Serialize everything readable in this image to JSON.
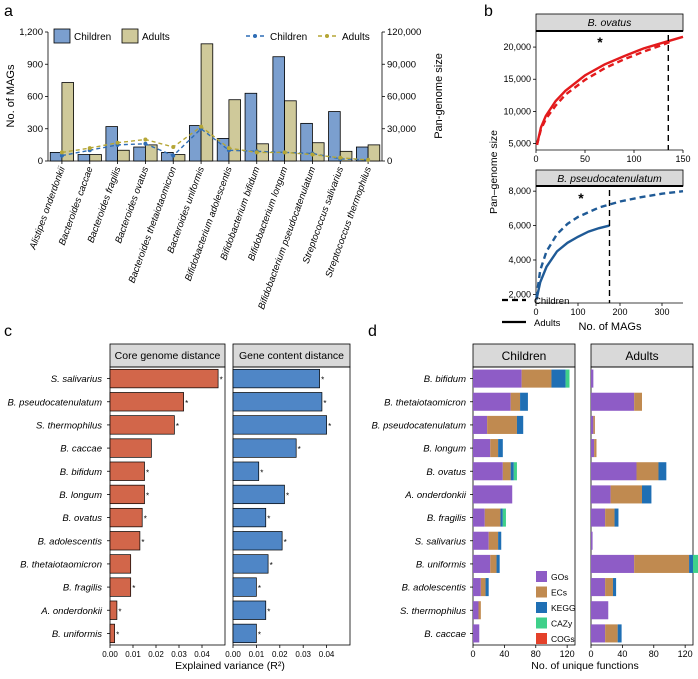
{
  "panels": [
    {
      "id": "a",
      "label": "a"
    },
    {
      "id": "b",
      "label": "b"
    },
    {
      "id": "c",
      "label": "c"
    },
    {
      "id": "d",
      "label": "d"
    }
  ],
  "colors": {
    "children_bar": "#7b9fcf",
    "adults_bar": "#cfc99a",
    "children_line": "#2f6db5",
    "adults_line": "#b5a636",
    "ovatus_line": "#e31a1c",
    "pseudo_line": "#1f5a96",
    "core_bar": "#d2664a",
    "gene_bar": "#4f86c6",
    "GOs": "#8e5cc6",
    "ECs": "#c08a50",
    "KEGG": "#1f6fb4",
    "CAZy": "#3fd08a",
    "COGs": "#e4412a",
    "strip": "#d9d9d9"
  },
  "chart_data": [
    {
      "panel": "a",
      "type": "bar",
      "categories": [
        "Alistipes onderdonkii",
        "Bacteroides caccae",
        "Bacteroides fragilis",
        "Bacteroides ovatus",
        "Bacteroides thetaiotaomicron",
        "Bacteroides uniformis",
        "Bifidobacterium adolescentis",
        "Bifidobacterium bifidum",
        "Bifidobacterium longum",
        "Bifidobacterium pseudocatenulatum",
        "Streptococcus salivarius",
        "Streptococcus thermophilus"
      ],
      "series": [
        {
          "name": "Children",
          "kind": "bar",
          "values": [
            80,
            60,
            320,
            130,
            80,
            330,
            210,
            630,
            970,
            350,
            460,
            130
          ]
        },
        {
          "name": "Adults",
          "kind": "bar",
          "values": [
            730,
            60,
            100,
            150,
            60,
            1090,
            570,
            160,
            560,
            170,
            90,
            150
          ]
        },
        {
          "name": "Children",
          "kind": "line",
          "axis": "right",
          "values": [
            5000,
            10000,
            15000,
            16000,
            5000,
            30000,
            10000,
            9000,
            8000,
            7000,
            2000,
            1000
          ]
        },
        {
          "name": "Adults",
          "kind": "line",
          "axis": "right",
          "values": [
            8000,
            12000,
            17000,
            20000,
            13000,
            32000,
            12000,
            8000,
            8000,
            6000,
            3000,
            1000
          ]
        }
      ],
      "ylabel": "No. of MAGs",
      "ylabel_right": "Pan-genome size",
      "ylim": [
        0,
        1200
      ],
      "ylim_right": [
        0,
        120000
      ],
      "yticks": [
        "0",
        "300",
        "600",
        "900",
        "1,200"
      ],
      "yticks_right": [
        "0",
        "30,000",
        "60,000",
        "90,000",
        "120,000"
      ],
      "legend": "top"
    },
    {
      "panel": "b",
      "type": "line",
      "plots": [
        {
          "title": "B. ovatus",
          "xlim": [
            0,
            150
          ],
          "ylim": [
            4000,
            22500
          ],
          "xticks": [
            "0",
            "50",
            "100",
            "150"
          ],
          "yticks": [
            "5,000",
            "10,000",
            "15,000",
            "20,000"
          ],
          "series": [
            {
              "name": "Children",
              "style": "dashed",
              "x": [
                1,
                5,
                10,
                20,
                30,
                50,
                70,
                90,
                110,
                130,
                140
              ],
              "y": [
                4800,
                7200,
                8800,
                10900,
                12600,
                14900,
                16700,
                18100,
                19300,
                20400,
                21000
              ]
            },
            {
              "name": "Adults",
              "style": "solid",
              "x": [
                1,
                5,
                10,
                20,
                30,
                50,
                70,
                90,
                110,
                130,
                150
              ],
              "y": [
                4800,
                7500,
                9300,
                11600,
                13200,
                15600,
                17300,
                18600,
                19800,
                20700,
                21600
              ]
            }
          ],
          "vline_x": 135,
          "annotation": "*"
        },
        {
          "title": "B. pseudocatenulatum",
          "xlim": [
            0,
            350
          ],
          "ylim": [
            1500,
            8300
          ],
          "xticks": [
            "0",
            "100",
            "200",
            "300"
          ],
          "yticks": [
            "2,000",
            "4,000",
            "6,000",
            "8,000"
          ],
          "series": [
            {
              "name": "Children",
              "style": "dashed",
              "x": [
                1,
                10,
                25,
                50,
                75,
                100,
                150,
                200,
                250,
                300,
                350
              ],
              "y": [
                1800,
                3400,
                4500,
                5500,
                6100,
                6500,
                7050,
                7400,
                7650,
                7850,
                8000
              ]
            },
            {
              "name": "Adults",
              "style": "solid",
              "x": [
                1,
                10,
                25,
                50,
                75,
                100,
                125,
                150,
                175
              ],
              "y": [
                1700,
                2700,
                3600,
                4500,
                5000,
                5350,
                5650,
                5850,
                6000
              ]
            }
          ],
          "vline_x": 175,
          "annotation": "*"
        }
      ],
      "xlabel": "No. of MAGs",
      "ylabel": "Pan–genome size",
      "legend": [
        "Children",
        "Adults"
      ]
    },
    {
      "panel": "c",
      "type": "bar",
      "orientation": "horizontal",
      "categories": [
        "S. salivarius",
        "B. pseudocatenulatum",
        "S. thermophilus",
        "B. caccae",
        "B. bifidum",
        "B. longum",
        "B. ovatus",
        "B. adolescentis",
        "B. thetaiotaomicron",
        "B. fragilis",
        "A. onderdonkii",
        "B. uniformis"
      ],
      "facets": [
        {
          "title": "Core genome distance",
          "values": [
            0.047,
            0.032,
            0.028,
            0.018,
            0.015,
            0.015,
            0.014,
            0.013,
            0.009,
            0.009,
            0.003,
            0.002
          ],
          "significant": [
            true,
            true,
            true,
            false,
            true,
            true,
            true,
            true,
            false,
            true,
            true,
            true
          ]
        },
        {
          "title": "Gene content distance",
          "values": [
            0.037,
            0.038,
            0.04,
            0.027,
            0.011,
            0.022,
            0.014,
            0.021,
            0.015,
            0.01,
            0.014,
            0.01
          ],
          "significant": [
            true,
            true,
            true,
            true,
            true,
            true,
            true,
            true,
            true,
            true,
            true,
            true
          ]
        }
      ],
      "xlim": [
        0,
        0.05
      ],
      "xticks": [
        "0.00",
        "0.01",
        "0.02",
        "0.03",
        "0.04"
      ],
      "xlabel": "Explained variance (R²)",
      "sig_label": "*"
    },
    {
      "panel": "d",
      "type": "bar",
      "orientation": "horizontal",
      "stacked": true,
      "categories": [
        "B. bifidum",
        "B. thetaiotaomicron",
        "B. pseudocatenulatum",
        "B. longum",
        "B. ovatus",
        "A. onderdonkii",
        "B. fragilis",
        "S. salivarius",
        "B. uniformis",
        "B. adolescentis",
        "S. thermophilus",
        "B. caccae"
      ],
      "series_names": [
        "GOs",
        "ECs",
        "KEGG",
        "CAZy",
        "COGs"
      ],
      "facets": [
        {
          "title": "Children",
          "values": [
            [
              62,
              38,
              18,
              5,
              0
            ],
            [
              48,
              12,
              10,
              0,
              0
            ],
            [
              18,
              38,
              8,
              0,
              0
            ],
            [
              22,
              10,
              6,
              0,
              0
            ],
            [
              38,
              10,
              4,
              4,
              0
            ],
            [
              50,
              0,
              0,
              0,
              0
            ],
            [
              15,
              20,
              3,
              4,
              0
            ],
            [
              20,
              12,
              4,
              0,
              0
            ],
            [
              22,
              8,
              4,
              0,
              0
            ],
            [
              10,
              6,
              4,
              0,
              0
            ],
            [
              7,
              3,
              0,
              0,
              0
            ],
            [
              8,
              0,
              0,
              0,
              0
            ]
          ]
        },
        {
          "title": "Adults",
          "values": [
            [
              3,
              0,
              0,
              0,
              0
            ],
            [
              55,
              10,
              0,
              0,
              0
            ],
            [
              3,
              2,
              0,
              0,
              0
            ],
            [
              4,
              3,
              0,
              0,
              0
            ],
            [
              58,
              28,
              10,
              0,
              0
            ],
            [
              25,
              40,
              12,
              0,
              0
            ],
            [
              18,
              12,
              5,
              0,
              0
            ],
            [
              2,
              0,
              0,
              0,
              0
            ],
            [
              55,
              70,
              5,
              7,
              0
            ],
            [
              18,
              10,
              4,
              0,
              0
            ],
            [
              22,
              0,
              0,
              0,
              0
            ],
            [
              18,
              16,
              5,
              0,
              0
            ]
          ]
        }
      ],
      "xlim": [
        0,
        130
      ],
      "xticks": [
        "0",
        "40",
        "80",
        "120"
      ],
      "xlabel": "No. of unique functions",
      "legend": "inside bottom-right"
    }
  ]
}
